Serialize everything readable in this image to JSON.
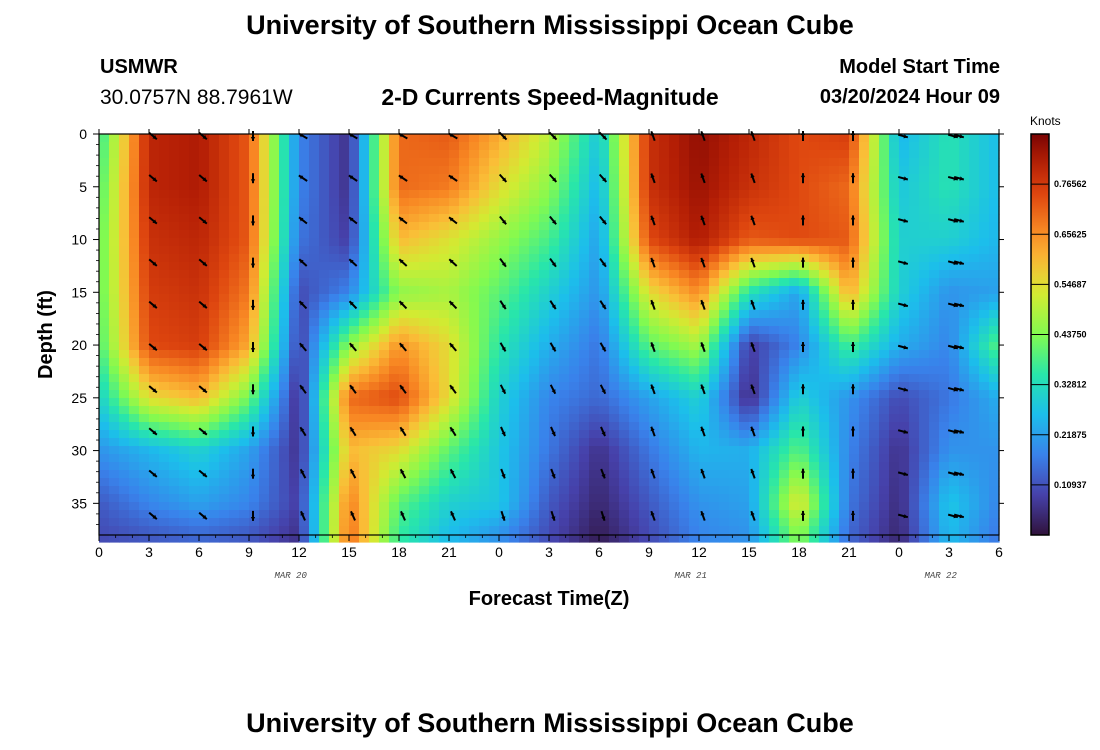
{
  "header": {
    "title": "University of Southern Mississippi Ocean Cube",
    "station": "USMWR",
    "coords": "30.0757N  88.7961W",
    "subtitle": "2-D Currents Speed-Magnitude",
    "model_start_label": "Model Start Time",
    "model_start_value": "03/20/2024 Hour 09"
  },
  "footer": {
    "title": "University of Southern Mississippi Ocean Cube"
  },
  "chart_data": {
    "type": "heatmap",
    "title": "2-D Currents Speed-Magnitude",
    "xlabel": "Forecast Time(Z)",
    "ylabel": "Depth (ft)",
    "xlim": [
      0,
      54
    ],
    "ylim": [
      0,
      38
    ],
    "y_inverted": true,
    "x_tick_values": [
      0,
      3,
      6,
      9,
      12,
      15,
      18,
      21,
      24,
      27,
      30,
      33,
      36,
      39,
      42,
      45,
      48,
      51,
      54
    ],
    "x_tick_labels": [
      "0",
      "3",
      "6",
      "9",
      "12",
      "15",
      "18",
      "21",
      "0",
      "3",
      "6",
      "9",
      "12",
      "15",
      "18",
      "21",
      "0",
      "3",
      "6"
    ],
    "y_ticks": [
      0,
      5,
      10,
      15,
      20,
      25,
      30,
      35
    ],
    "date_labels": [
      {
        "x": 11.5,
        "label": "MAR 20"
      },
      {
        "x": 35.5,
        "label": "MAR 21"
      },
      {
        "x": 50.5,
        "label": "MAR 22"
      }
    ],
    "colorbar": {
      "title": "Knots",
      "range": [
        0,
        0.875
      ],
      "ticks": [
        0.10937,
        0.21875,
        0.32812,
        0.4375,
        0.54687,
        0.65625,
        0.76562
      ],
      "tick_labels": [
        "0.10937",
        "0.21875",
        "0.32812",
        "0.43750",
        "0.54687",
        "0.65625",
        "0.76562"
      ]
    },
    "speed_grid": {
      "units": "knots",
      "time_step_hours": 3,
      "depth_step_ft": 5,
      "depths_ft": [
        0,
        5,
        10,
        15,
        20,
        25,
        30,
        35,
        38
      ],
      "values": [
        [
          0.35,
          0.8,
          0.82,
          0.72,
          0.18,
          0.06,
          0.7,
          0.72,
          0.62,
          0.5,
          0.28,
          0.78,
          0.85,
          0.8,
          0.74,
          0.76,
          0.25,
          0.34,
          0.26
        ],
        [
          0.38,
          0.8,
          0.82,
          0.72,
          0.18,
          0.06,
          0.7,
          0.68,
          0.55,
          0.45,
          0.25,
          0.78,
          0.84,
          0.78,
          0.74,
          0.7,
          0.28,
          0.34,
          0.26
        ],
        [
          0.4,
          0.78,
          0.8,
          0.72,
          0.16,
          0.08,
          0.6,
          0.54,
          0.46,
          0.38,
          0.22,
          0.74,
          0.82,
          0.72,
          0.74,
          0.72,
          0.3,
          0.3,
          0.25
        ],
        [
          0.4,
          0.76,
          0.78,
          0.68,
          0.1,
          0.18,
          0.45,
          0.48,
          0.4,
          0.3,
          0.2,
          0.55,
          0.66,
          0.34,
          0.22,
          0.62,
          0.3,
          0.2,
          0.22
        ],
        [
          0.38,
          0.74,
          0.76,
          0.62,
          0.08,
          0.45,
          0.65,
          0.55,
          0.35,
          0.24,
          0.16,
          0.4,
          0.48,
          0.08,
          0.18,
          0.38,
          0.24,
          0.18,
          0.4
        ],
        [
          0.3,
          0.55,
          0.6,
          0.42,
          0.05,
          0.7,
          0.74,
          0.55,
          0.3,
          0.18,
          0.14,
          0.22,
          0.3,
          0.05,
          0.3,
          0.2,
          0.1,
          0.16,
          0.24
        ],
        [
          0.2,
          0.25,
          0.3,
          0.22,
          0.06,
          0.6,
          0.55,
          0.4,
          0.28,
          0.16,
          0.06,
          0.16,
          0.25,
          0.24,
          0.4,
          0.18,
          0.06,
          0.2,
          0.2
        ],
        [
          0.12,
          0.18,
          0.22,
          0.18,
          0.08,
          0.68,
          0.4,
          0.3,
          0.28,
          0.12,
          0.04,
          0.12,
          0.2,
          0.22,
          0.55,
          0.16,
          0.05,
          0.28,
          0.18
        ],
        [
          0.1,
          0.12,
          0.14,
          0.12,
          0.06,
          0.7,
          0.36,
          0.26,
          0.2,
          0.1,
          0.02,
          0.1,
          0.18,
          0.2,
          0.45,
          0.14,
          0.04,
          0.26,
          0.16
        ]
      ]
    },
    "vector_field": {
      "description": "current direction arrows sampled every 3 hours, depths 0-36 ft every 4 ft",
      "depths_ft": [
        0,
        4,
        8,
        12,
        16,
        20,
        24,
        28,
        32,
        36
      ]
    }
  }
}
